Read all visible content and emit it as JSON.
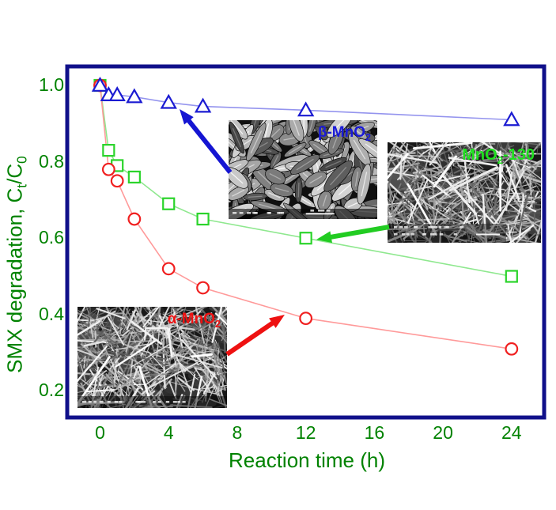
{
  "figure": {
    "xlabel": "Reaction time (h)",
    "ylabel_prefix": "SMX degradation, C",
    "ylabel_sub1": "t",
    "ylabel_mid": "/C",
    "ylabel_sub2": "0",
    "x_ticks": [
      "0",
      "4",
      "8",
      "12",
      "16",
      "20",
      "24"
    ],
    "y_ticks": [
      "1.0",
      "0.8",
      "0.6",
      "0.4",
      "0.2"
    ]
  },
  "colors": {
    "frame": "#10108a",
    "axis_text": "#008200",
    "background": "#ffffff"
  },
  "chart_data": {
    "type": "line",
    "title": "",
    "xlabel": "Reaction time (h)",
    "ylabel": "SMX degradation, Ct/C0",
    "x": [
      0,
      0.5,
      1,
      2,
      4,
      6,
      12,
      24
    ],
    "xlim": [
      -2,
      26
    ],
    "ylim": [
      0.13,
      1.05
    ],
    "x_tick_values": [
      0,
      4,
      8,
      12,
      16,
      20,
      24
    ],
    "y_tick_values": [
      1.0,
      0.8,
      0.6,
      0.4,
      0.2
    ],
    "grid": false,
    "legend_position": "none",
    "series": [
      {
        "name": "β-MnO2",
        "marker": "triangle",
        "marker_color": "#1b1bd2",
        "line_color": "#9494ee",
        "values": [
          1.0,
          0.975,
          0.975,
          0.97,
          0.955,
          0.945,
          0.935,
          0.91
        ]
      },
      {
        "name": "MnO2-130",
        "marker": "square",
        "marker_color": "#2bd42b",
        "line_color": "#8fe88f",
        "values": [
          1.0,
          0.83,
          0.79,
          0.76,
          0.69,
          0.65,
          0.6,
          0.5
        ]
      },
      {
        "name": "α-MnO2",
        "marker": "circle",
        "marker_color": "#f02020",
        "line_color": "#ff9a9a",
        "values": [
          1.0,
          0.78,
          0.75,
          0.65,
          0.52,
          0.47,
          0.39,
          0.31
        ]
      }
    ],
    "insets": [
      {
        "id": "beta-mno2-sem",
        "label_prefix": "β-MnO",
        "label_sub": "2",
        "label_suffix": "",
        "label_color": "#1a1ad8",
        "texture": "grains"
      },
      {
        "id": "mno2-130-sem",
        "label_prefix": "MnO",
        "label_sub": "2",
        "label_suffix": "-130",
        "label_color": "#1fe01f",
        "texture": "needles"
      },
      {
        "id": "alpha-mno2-sem",
        "label_prefix": "α-MnO",
        "label_sub": "2",
        "label_suffix": "",
        "label_color": "#ee1111",
        "texture": "needles"
      }
    ],
    "annotations": [
      {
        "type": "arrow",
        "color": "#1515d2",
        "points_to": "β-MnO2 curve"
      },
      {
        "type": "arrow",
        "color": "#22cc22",
        "points_to": "MnO2-130 curve"
      },
      {
        "type": "arrow",
        "color": "#ee1111",
        "points_to": "α-MnO2 curve"
      }
    ]
  }
}
